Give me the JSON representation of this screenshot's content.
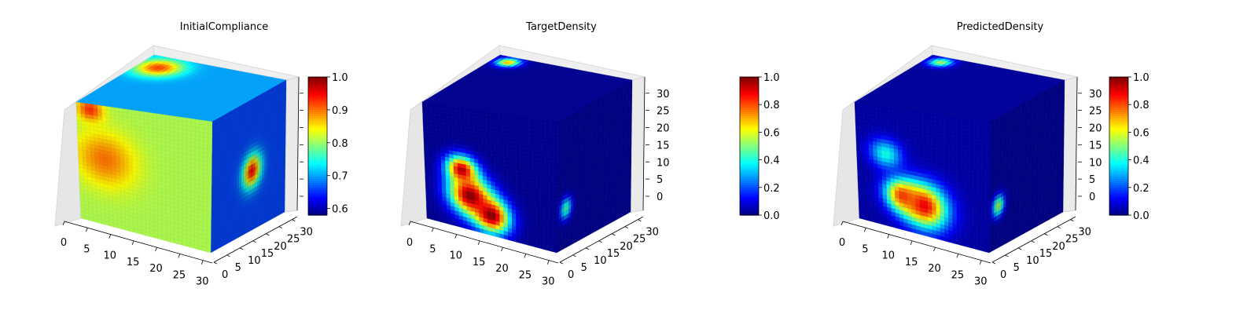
{
  "chart_data": [
    {
      "type": "voxel-3d",
      "title": "InitialCompliance",
      "x_ticks": [
        "0",
        "5",
        "10",
        "15",
        "20",
        "25",
        "30"
      ],
      "y_ticks": [
        "0",
        "5",
        "10",
        "15",
        "20",
        "25",
        "30"
      ],
      "z_ticks": [],
      "grid_size": 32,
      "xlim": [
        0,
        32
      ],
      "ylim": [
        0,
        32
      ],
      "zlim": [
        0,
        32
      ],
      "colormap": "jet",
      "colorbar": {
        "range": [
          0.58,
          1.0
        ],
        "ticks": [
          "0.6",
          "0.7",
          "0.8",
          "0.9",
          "1.0"
        ],
        "tick_values": [
          0.6,
          0.7,
          0.8,
          0.9,
          1.0
        ]
      },
      "face_base_values": {
        "front": 0.81,
        "right": 0.66,
        "top": 0.7
      },
      "hotspots": [
        {
          "face": "front",
          "u": 0.2,
          "v": 0.55,
          "value": 0.9,
          "radius": 0.28
        },
        {
          "face": "front",
          "u": 0.1,
          "v": 0.95,
          "value": 0.93,
          "radius": 0.12
        },
        {
          "face": "top",
          "u": 0.15,
          "v": 0.2,
          "value": 0.92,
          "radius": 0.2
        },
        {
          "face": "right",
          "u": 0.55,
          "v": 0.45,
          "value": 0.95,
          "radius": 0.15
        }
      ]
    },
    {
      "type": "voxel-3d",
      "title": "TargetDensity",
      "x_ticks": [
        "0",
        "5",
        "10",
        "15",
        "20",
        "25",
        "30"
      ],
      "y_ticks": [
        "0",
        "5",
        "10",
        "15",
        "20",
        "25",
        "30"
      ],
      "z_ticks": [
        "0",
        "5",
        "10",
        "15",
        "20",
        "25",
        "30"
      ],
      "grid_size": 32,
      "xlim": [
        0,
        32
      ],
      "ylim": [
        0,
        32
      ],
      "zlim": [
        0,
        32
      ],
      "colormap": "jet",
      "colorbar": {
        "range": [
          0.0,
          1.0
        ],
        "ticks": [
          "0.0",
          "0.2",
          "0.4",
          "0.6",
          "0.8",
          "1.0"
        ],
        "tick_values": [
          0.0,
          0.2,
          0.4,
          0.6,
          0.8,
          1.0
        ]
      },
      "face_base_values": {
        "front": 0.02,
        "right": 0.03,
        "top": 0.02
      },
      "hotspots": [
        {
          "face": "front",
          "u": 0.34,
          "v": 0.28,
          "value": 1.0,
          "radius": 0.2
        },
        {
          "face": "front",
          "u": 0.5,
          "v": 0.16,
          "value": 1.0,
          "radius": 0.17
        },
        {
          "face": "front",
          "u": 0.28,
          "v": 0.48,
          "value": 0.95,
          "radius": 0.14
        },
        {
          "face": "top",
          "u": 0.12,
          "v": 0.1,
          "value": 0.7,
          "radius": 0.1
        },
        {
          "face": "right",
          "u": 0.12,
          "v": 0.3,
          "value": 0.45,
          "radius": 0.1
        }
      ]
    },
    {
      "type": "voxel-3d",
      "title": "PredictedDensity",
      "x_ticks": [
        "0",
        "5",
        "10",
        "15",
        "20",
        "25",
        "30"
      ],
      "y_ticks": [
        "0",
        "5",
        "10",
        "15",
        "20",
        "25",
        "30"
      ],
      "z_ticks": [
        "0",
        "5",
        "10",
        "15",
        "20",
        "25",
        "30"
      ],
      "grid_size": 32,
      "xlim": [
        0,
        32
      ],
      "ylim": [
        0,
        32
      ],
      "zlim": [
        0,
        32
      ],
      "colormap": "jet",
      "colorbar": {
        "range": [
          0.0,
          1.0
        ],
        "ticks": [
          "0.0",
          "0.2",
          "0.4",
          "0.6",
          "0.8",
          "1.0"
        ],
        "tick_values": [
          0.0,
          0.2,
          0.4,
          0.6,
          0.8,
          1.0
        ]
      },
      "face_base_values": {
        "front": 0.04,
        "right": 0.03,
        "top": 0.03
      },
      "hotspots": [
        {
          "face": "front",
          "u": 0.5,
          "v": 0.24,
          "value": 0.9,
          "radius": 0.22
        },
        {
          "face": "front",
          "u": 0.34,
          "v": 0.28,
          "value": 0.82,
          "radius": 0.16
        },
        {
          "face": "front",
          "u": 0.22,
          "v": 0.6,
          "value": 0.4,
          "radius": 0.15
        },
        {
          "face": "top",
          "u": 0.12,
          "v": 0.1,
          "value": 0.55,
          "radius": 0.1
        },
        {
          "face": "right",
          "u": 0.12,
          "v": 0.32,
          "value": 0.55,
          "radius": 0.1
        }
      ]
    }
  ]
}
